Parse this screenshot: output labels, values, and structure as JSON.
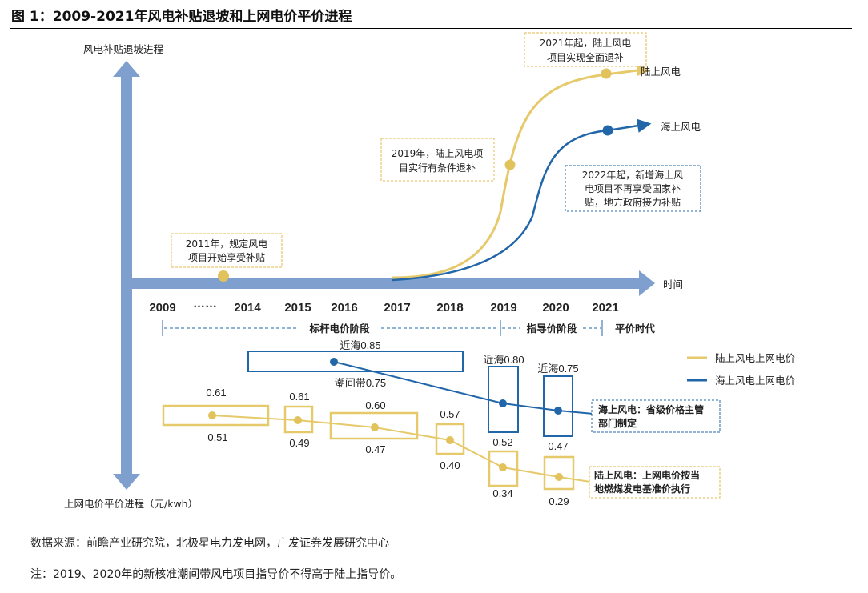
{
  "title": "图 1：2009-2021年风电补贴退坡和上网电价平价进程",
  "axes": {
    "y_top_label": "风电补贴退坡进程",
    "y_bottom_label": "上网电价平价进程（元/kwh）",
    "x_label": "时间"
  },
  "years": [
    "2009",
    "……",
    "2014",
    "2015",
    "2016",
    "2017",
    "2018",
    "2019",
    "2020",
    "2021"
  ],
  "phases": {
    "benchmark": "标杆电价阶段",
    "guide": "指导价阶段",
    "parity": "平价时代"
  },
  "curves": {
    "onshore": "陆上风电",
    "offshore": "海上风电"
  },
  "annotations": {
    "a2011": [
      "2011年，规定风电",
      "项目开始享受补贴"
    ],
    "a2019": [
      "2019年，陆上风电项",
      "目实行有条件退补"
    ],
    "a2021": [
      "2021年起，陆上风电",
      "项目实现全面退补"
    ],
    "a2022": [
      "2022年起，新增海上风",
      "电项目不再享受国家补",
      "贴，地方政府接力补贴"
    ]
  },
  "legend": {
    "onshore_price": "陆上风电上网电价",
    "offshore_price": "海上风电上网电价"
  },
  "price_notes": {
    "offshore": [
      "海上风电：省级价格主管",
      "部门制定"
    ],
    "onshore": [
      "陆上风电：上网电价按当",
      "地燃煤发电基准价执行"
    ]
  },
  "onshore_prices": [
    {
      "period": "2009-2014",
      "high": "0.61",
      "low": "0.51"
    },
    {
      "period": "2015",
      "high": "0.61",
      "low": "0.49"
    },
    {
      "period": "2016-2017",
      "high": "0.60",
      "low": "0.47"
    },
    {
      "period": "2018",
      "high": "0.57",
      "low": "0.40"
    },
    {
      "period": "2019",
      "high": "",
      "low": "0.34"
    },
    {
      "period": "2020",
      "high": "",
      "low": "0.29"
    }
  ],
  "offshore_prices": [
    {
      "period": "2014-2018",
      "high": "近海0.85",
      "low": "潮间带0.75"
    },
    {
      "period": "2019",
      "high": "近海0.80",
      "low": "0.52"
    },
    {
      "period": "2020",
      "high": "近海0.75",
      "low": "0.47"
    }
  ],
  "colors": {
    "axis": "#7f9fcf",
    "onshore": "#e6c96a",
    "onshore_dot": "#e2c25a",
    "offshore": "#2166a8",
    "annotation_border": "#e1b84a"
  },
  "source": "数据来源：前瞻产业研究院，北极星电力发电网，广发证券发展研究中心",
  "note": "注：2019、2020年的新核准潮间带风电项目指导价不得高于陆上指导价。"
}
